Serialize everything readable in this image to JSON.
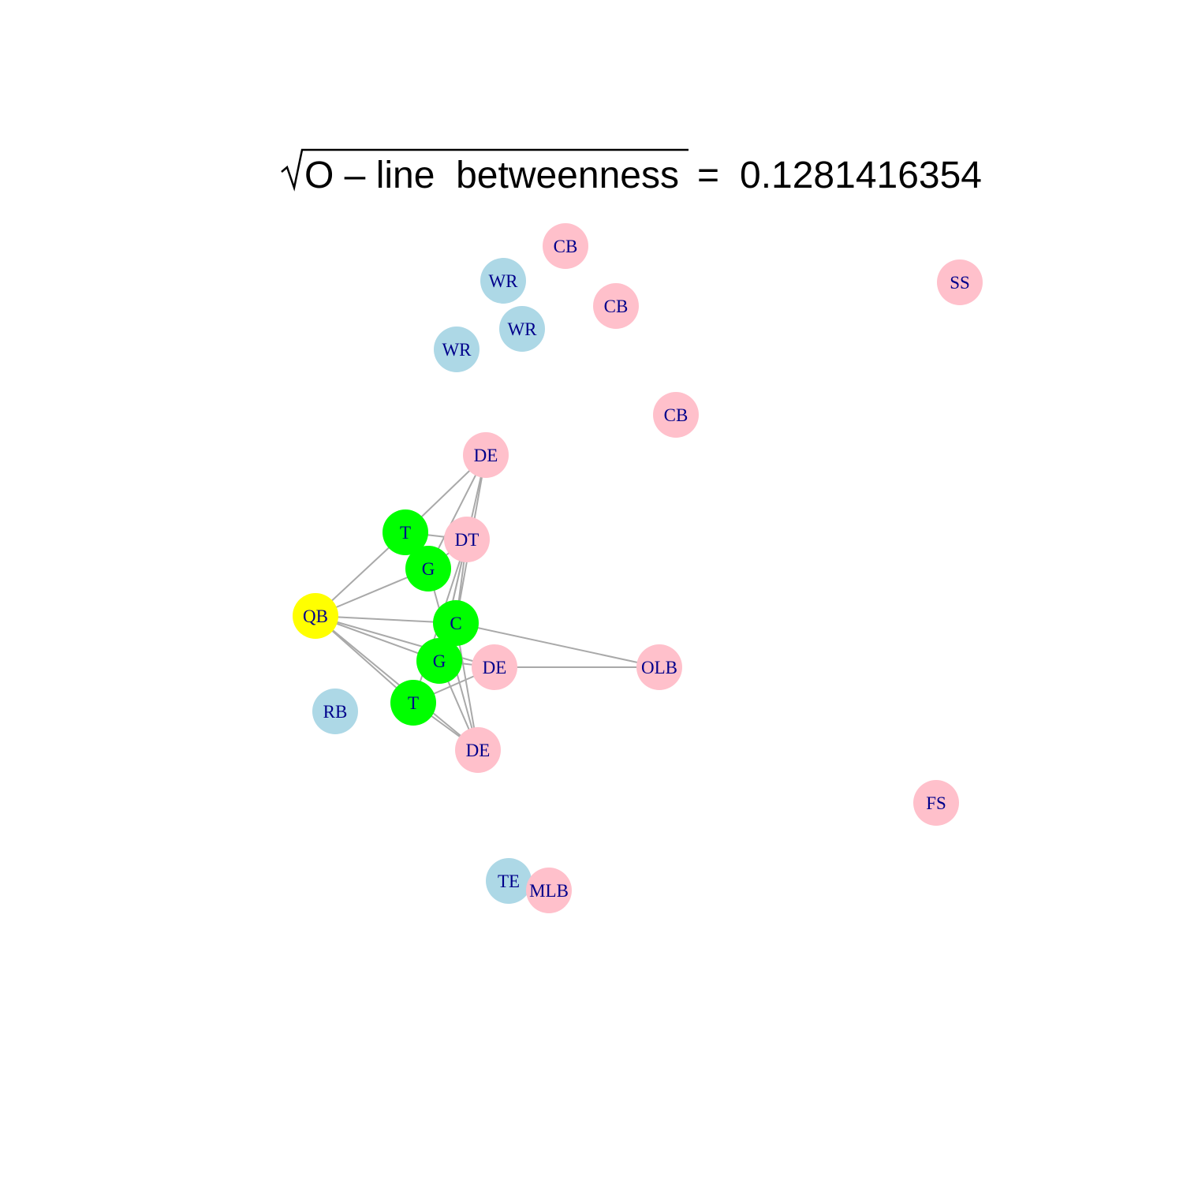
{
  "title": {
    "radicand": "O – line  betweenness",
    "equals": "=",
    "value": "0.1281416354"
  },
  "colors": {
    "offense": "#add8e6",
    "defense": "#ffc0cb",
    "oline": "#00ff00",
    "qb": "#ffff00",
    "edge": "#a9a9a9",
    "label": "#00008b"
  },
  "nodes": [
    {
      "id": "qb",
      "label": "QB",
      "group": "qb"
    },
    {
      "id": "t1",
      "label": "T",
      "group": "oline"
    },
    {
      "id": "g1",
      "label": "G",
      "group": "oline"
    },
    {
      "id": "c",
      "label": "C",
      "group": "oline"
    },
    {
      "id": "g2",
      "label": "G",
      "group": "oline"
    },
    {
      "id": "t2",
      "label": "T",
      "group": "oline"
    },
    {
      "id": "rb",
      "label": "RB",
      "group": "offense"
    },
    {
      "id": "te",
      "label": "TE",
      "group": "offense"
    },
    {
      "id": "wr1",
      "label": "WR",
      "group": "offense"
    },
    {
      "id": "wr2",
      "label": "WR",
      "group": "offense"
    },
    {
      "id": "wr3",
      "label": "WR",
      "group": "offense"
    },
    {
      "id": "cb1",
      "label": "CB",
      "group": "defense"
    },
    {
      "id": "cb2",
      "label": "CB",
      "group": "defense"
    },
    {
      "id": "cb3",
      "label": "CB",
      "group": "defense"
    },
    {
      "id": "ss",
      "label": "SS",
      "group": "defense"
    },
    {
      "id": "fs",
      "label": "FS",
      "group": "defense"
    },
    {
      "id": "de1",
      "label": "DE",
      "group": "defense"
    },
    {
      "id": "dt",
      "label": "DT",
      "group": "defense"
    },
    {
      "id": "de2",
      "label": "DE",
      "group": "defense"
    },
    {
      "id": "de3",
      "label": "DE",
      "group": "defense"
    },
    {
      "id": "olb",
      "label": "OLB",
      "group": "defense"
    },
    {
      "id": "mlb",
      "label": "MLB",
      "group": "defense"
    }
  ],
  "edges": [
    [
      "qb",
      "t1"
    ],
    [
      "qb",
      "g1"
    ],
    [
      "qb",
      "c"
    ],
    [
      "qb",
      "g2"
    ],
    [
      "qb",
      "t2"
    ],
    [
      "qb",
      "de2"
    ],
    [
      "qb",
      "de3"
    ],
    [
      "t1",
      "de1"
    ],
    [
      "t1",
      "dt"
    ],
    [
      "g1",
      "de1"
    ],
    [
      "g1",
      "dt"
    ],
    [
      "g1",
      "de3"
    ],
    [
      "c",
      "olb"
    ],
    [
      "c",
      "de1"
    ],
    [
      "c",
      "dt"
    ],
    [
      "c",
      "de3"
    ],
    [
      "g2",
      "de2"
    ],
    [
      "g2",
      "dt"
    ],
    [
      "g2",
      "de3"
    ],
    [
      "g2",
      "de1"
    ],
    [
      "t2",
      "de2"
    ],
    [
      "t2",
      "de3"
    ],
    [
      "t2",
      "dt"
    ],
    [
      "de2",
      "olb"
    ]
  ]
}
